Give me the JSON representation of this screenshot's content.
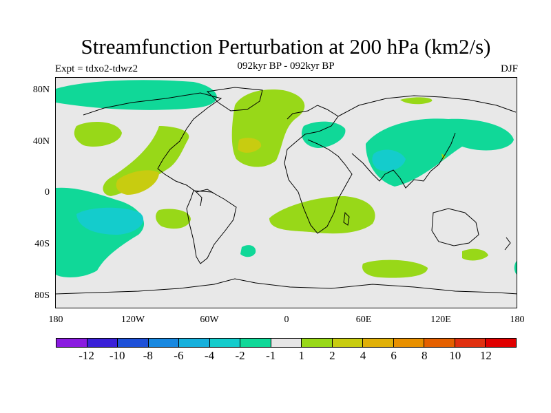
{
  "title": "Streamfunction Perturbation at 200 hPa (km2/s)",
  "subtitle": "092kyr BP - 092kyr BP",
  "left_label": "Expt = tdxo2-tdwz2",
  "right_label": "DJF",
  "lat_labels": [
    "80N",
    "40N",
    "0",
    "40S",
    "80S"
  ],
  "lon_labels": [
    "180",
    "120W",
    "60W",
    "0",
    "60E",
    "120E",
    "180"
  ],
  "colorbar": {
    "colors": [
      "#8a1be0",
      "#3a20d8",
      "#1d50d8",
      "#1888e0",
      "#16b0dc",
      "#14cccc",
      "#10d898",
      "#e6e6e6",
      "#98d818",
      "#c8cc10",
      "#e0b008",
      "#e89000",
      "#e46000",
      "#e03010",
      "#e00000"
    ],
    "labels": [
      "-12",
      "-10",
      "-8",
      "-6",
      "-4",
      "-2",
      "-1",
      "1",
      "2",
      "4",
      "6",
      "8",
      "10",
      "12"
    ]
  },
  "background_color": "#e8e8e8"
}
